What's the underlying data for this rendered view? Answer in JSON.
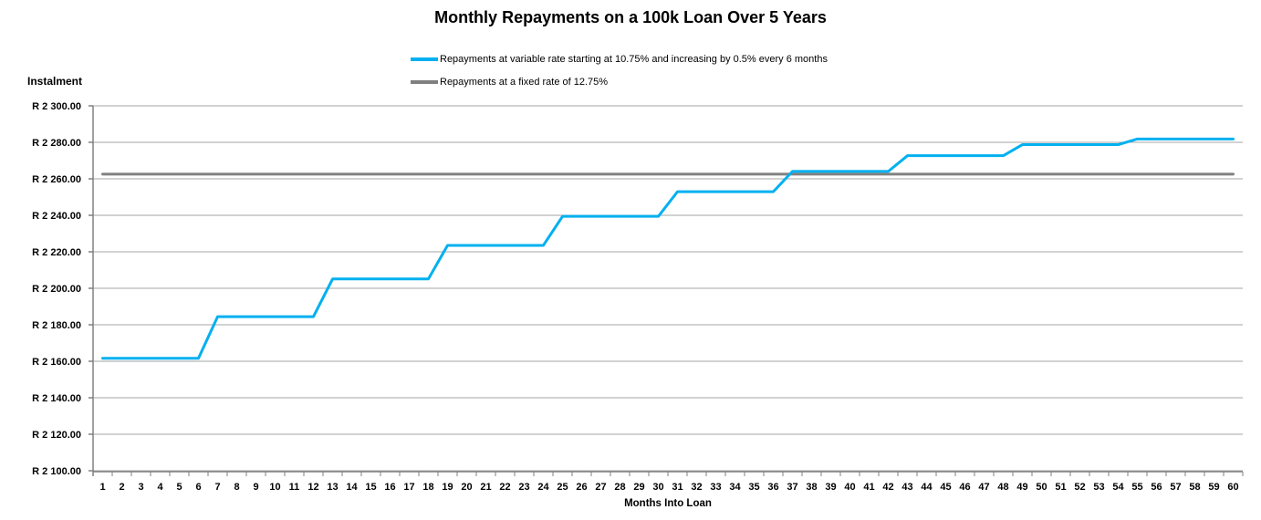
{
  "chart_data": {
    "type": "line",
    "title": "Monthly Repayments on a 100k Loan Over 5 Years",
    "xlabel": "Months Into Loan",
    "ylabel": "Instalment",
    "ylim": [
      2100,
      2300
    ],
    "grid": true,
    "legend_position": "top-center",
    "axis_color": "#808080",
    "gridline_color": "#a6a6a6",
    "x": [
      1,
      2,
      3,
      4,
      5,
      6,
      7,
      8,
      9,
      10,
      11,
      12,
      13,
      14,
      15,
      16,
      17,
      18,
      19,
      20,
      21,
      22,
      23,
      24,
      25,
      26,
      27,
      28,
      29,
      30,
      31,
      32,
      33,
      34,
      35,
      36,
      37,
      38,
      39,
      40,
      41,
      42,
      43,
      44,
      45,
      46,
      47,
      48,
      49,
      50,
      51,
      52,
      53,
      54,
      55,
      56,
      57,
      58,
      59,
      60
    ],
    "yticks": [
      {
        "value": 2100,
        "label": "R 2 100.00"
      },
      {
        "value": 2120,
        "label": "R 2 120.00"
      },
      {
        "value": 2140,
        "label": "R 2 140.00"
      },
      {
        "value": 2160,
        "label": "R 2 160.00"
      },
      {
        "value": 2180,
        "label": "R 2 180.00"
      },
      {
        "value": 2200,
        "label": "R 2 200.00"
      },
      {
        "value": 2220,
        "label": "R 2 220.00"
      },
      {
        "value": 2240,
        "label": "R 2 240.00"
      },
      {
        "value": 2260,
        "label": "R 2 260.00"
      },
      {
        "value": 2280,
        "label": "R 2 280.00"
      },
      {
        "value": 2300,
        "label": "R 2 300.00"
      }
    ],
    "series": [
      {
        "name": "Repayments at variable rate starting at 10.75% and increasing by 0.5% every 6 months",
        "color": "#00b0f0",
        "stroke_width": 3,
        "values": [
          2161.62,
          2161.62,
          2161.62,
          2161.62,
          2161.62,
          2161.62,
          2184.46,
          2184.46,
          2184.46,
          2184.46,
          2184.46,
          2184.46,
          2205.11,
          2205.11,
          2205.11,
          2205.11,
          2205.11,
          2205.11,
          2223.52,
          2223.52,
          2223.52,
          2223.52,
          2223.52,
          2223.52,
          2239.42,
          2239.42,
          2239.42,
          2239.42,
          2239.42,
          2239.42,
          2252.93,
          2252.93,
          2252.93,
          2252.93,
          2252.93,
          2252.93,
          2264.07,
          2264.07,
          2264.07,
          2264.07,
          2264.07,
          2264.07,
          2272.66,
          2272.66,
          2272.66,
          2272.66,
          2272.66,
          2272.66,
          2278.72,
          2278.72,
          2278.72,
          2278.72,
          2278.72,
          2278.72,
          2281.82,
          2281.82,
          2281.82,
          2281.82,
          2281.82,
          2281.82
        ]
      },
      {
        "name": "Repayments at a fixed rate of 12.75%",
        "color": "#808080",
        "stroke_width": 3,
        "values": [
          2262.57,
          2262.57,
          2262.57,
          2262.57,
          2262.57,
          2262.57,
          2262.57,
          2262.57,
          2262.57,
          2262.57,
          2262.57,
          2262.57,
          2262.57,
          2262.57,
          2262.57,
          2262.57,
          2262.57,
          2262.57,
          2262.57,
          2262.57,
          2262.57,
          2262.57,
          2262.57,
          2262.57,
          2262.57,
          2262.57,
          2262.57,
          2262.57,
          2262.57,
          2262.57,
          2262.57,
          2262.57,
          2262.57,
          2262.57,
          2262.57,
          2262.57,
          2262.57,
          2262.57,
          2262.57,
          2262.57,
          2262.57,
          2262.57,
          2262.57,
          2262.57,
          2262.57,
          2262.57,
          2262.57,
          2262.57,
          2262.57,
          2262.57,
          2262.57,
          2262.57,
          2262.57,
          2262.57,
          2262.57,
          2262.57,
          2262.57,
          2262.57,
          2262.57,
          2262.57
        ]
      }
    ]
  }
}
